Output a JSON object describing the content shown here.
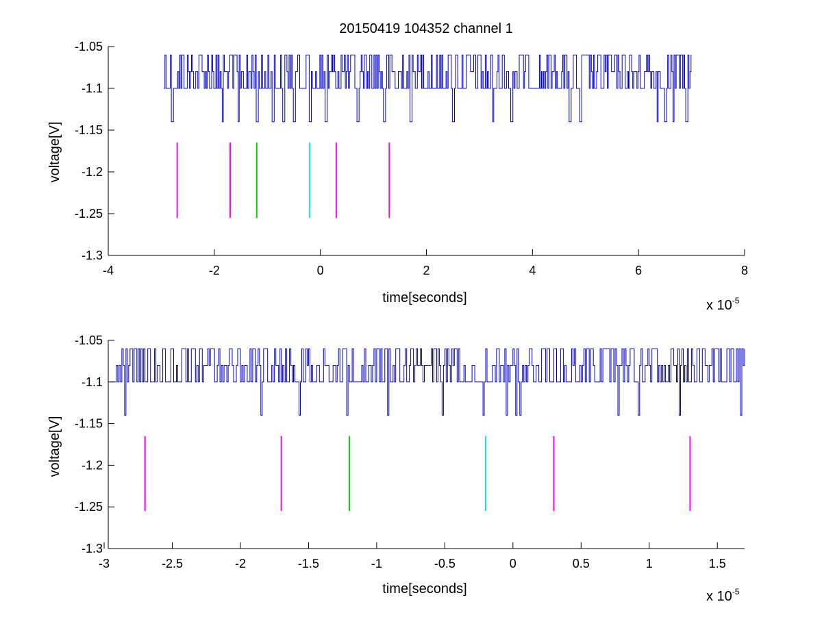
{
  "figure": {
    "title": "20150419 104352 channel 1"
  },
  "chart_data": [
    {
      "type": "line",
      "title": "20150419 104352 channel 1",
      "xlabel": "time[seconds]",
      "ylabel": "voltage[V]",
      "x_multiplier": "x 10",
      "x_exponent": "-5",
      "xlim": [
        -4,
        8
      ],
      "ylim": [
        -1.3,
        -1.05
      ],
      "x_ticks": [
        -4,
        -2,
        0,
        2,
        4,
        6,
        8
      ],
      "x_tick_labels": [
        "-4",
        "-2",
        "0",
        "2",
        "4",
        "6",
        "8"
      ],
      "y_ticks": [
        -1.05,
        -1.1,
        -1.15,
        -1.2,
        -1.25,
        -1.3
      ],
      "y_tick_labels": [
        "-1.05",
        "-1.1",
        "-1.15",
        "-1.2",
        "-1.25",
        "-1.3"
      ],
      "grid": false,
      "waveform": {
        "color": "#0000cc",
        "x_range": [
          -2.95,
          7.0
        ],
        "levels": [
          -1.06,
          -1.08,
          -1.1,
          -1.14
        ],
        "dips": [
          -2.8,
          -1.85,
          -1.55,
          -1.2,
          -0.9,
          -0.7,
          -0.5,
          -0.2,
          0.1,
          0.7,
          1.2,
          1.7,
          2.5,
          3.25,
          3.6,
          4.7,
          4.9,
          6.35,
          6.5,
          6.65,
          6.9
        ]
      },
      "markers": [
        {
          "x": -2.7,
          "color": "#ff00ff",
          "y_range": [
            -1.255,
            -1.165
          ]
        },
        {
          "x": -1.7,
          "color": "#ff00ff",
          "y_range": [
            -1.255,
            -1.165
          ]
        },
        {
          "x": -1.2,
          "color": "#00cc00",
          "y_range": [
            -1.255,
            -1.165
          ]
        },
        {
          "x": -0.2,
          "color": "#00e5e5",
          "y_range": [
            -1.255,
            -1.165
          ]
        },
        {
          "x": 0.3,
          "color": "#ff00ff",
          "y_range": [
            -1.255,
            -1.165
          ]
        },
        {
          "x": 1.3,
          "color": "#ff00ff",
          "y_range": [
            -1.255,
            -1.165
          ]
        }
      ]
    },
    {
      "type": "line",
      "xlabel": "time[seconds]",
      "ylabel": "voltage[V]",
      "x_multiplier": "x 10",
      "x_exponent": "-5",
      "xlim": [
        -2.97,
        1.7
      ],
      "ylim": [
        -1.3,
        -1.05
      ],
      "x_ticks": [
        -3,
        -2.5,
        -2,
        -1.5,
        -1,
        -0.5,
        0,
        0.5,
        1,
        1.5
      ],
      "x_tick_labels": [
        "-3",
        "-2.5",
        "-2",
        "-1.5",
        "-1",
        "-0.5",
        "0",
        "0.5",
        "1",
        "1.5"
      ],
      "y_ticks": [
        -1.05,
        -1.1,
        -1.15,
        -1.2,
        -1.25,
        -1.3
      ],
      "y_tick_labels": [
        "-1.05",
        "-1.1",
        "-1.15",
        "-1.2",
        "-1.25",
        "-1.3"
      ],
      "grid": false,
      "waveform": {
        "color": "#0000cc",
        "x_range": [
          -2.95,
          1.7
        ],
        "levels": [
          -1.06,
          -1.08,
          -1.1,
          -1.14
        ],
        "dips": [
          -2.85,
          -1.85,
          -1.57,
          -1.22,
          -0.92,
          -0.52,
          -0.22,
          0.02,
          -0.05,
          0.05,
          0.77,
          0.92,
          1.22,
          1.67
        ]
      },
      "markers": [
        {
          "x": -2.7,
          "color": "#ff00ff",
          "y_range": [
            -1.255,
            -1.165
          ]
        },
        {
          "x": -1.7,
          "color": "#ff00ff",
          "y_range": [
            -1.255,
            -1.165
          ]
        },
        {
          "x": -1.2,
          "color": "#00cc00",
          "y_range": [
            -1.255,
            -1.165
          ]
        },
        {
          "x": -0.2,
          "color": "#00e5e5",
          "y_range": [
            -1.255,
            -1.165
          ]
        },
        {
          "x": 0.3,
          "color": "#ff00ff",
          "y_range": [
            -1.255,
            -1.165
          ]
        },
        {
          "x": 1.3,
          "color": "#ff00ff",
          "y_range": [
            -1.255,
            -1.165
          ]
        }
      ]
    }
  ]
}
